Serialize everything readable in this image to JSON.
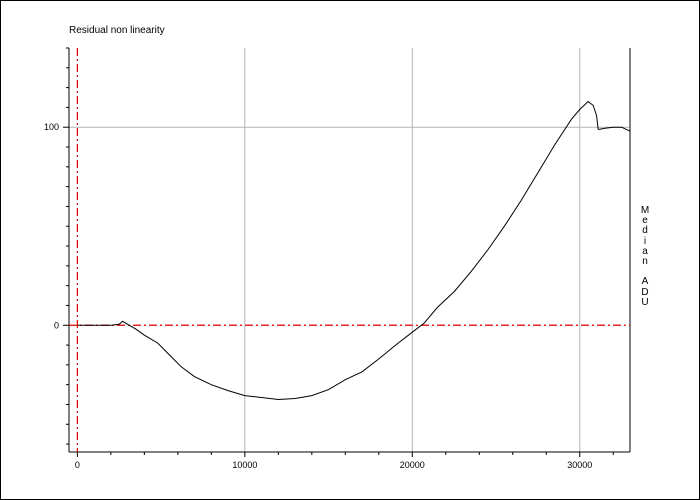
{
  "chart_data": {
    "type": "line",
    "title": "Residual non linearity",
    "xlabel": "",
    "ylabel": "Median ADU",
    "xlim": [
      -500,
      33000
    ],
    "ylim": [
      -64,
      140
    ],
    "x_ticks": [
      0,
      10000,
      20000,
      30000
    ],
    "x_tick_labels": [
      "0",
      "10000",
      "20000",
      "30000"
    ],
    "y_ticks": [
      0,
      100
    ],
    "y_tick_labels": [
      "0",
      "100"
    ],
    "grid": true,
    "reference_lines": {
      "x": 0,
      "y": 0,
      "color": "#e00000",
      "style": "dash-dot"
    },
    "series": [
      {
        "color": "#000000",
        "x": [
          0,
          1000,
          2000,
          2500,
          2700,
          3000,
          3500,
          4000,
          4800,
          5500,
          6200,
          7000,
          8000,
          9000,
          10000,
          11000,
          12000,
          13000,
          14000,
          15000,
          16000,
          17000,
          18000,
          19000,
          20000,
          20700,
          21500,
          22500,
          23500,
          24500,
          25500,
          26500,
          27500,
          28500,
          29500,
          30000,
          30500,
          30800,
          31000,
          31100,
          31200,
          31500,
          32000,
          32500,
          33000
        ],
        "y": [
          0,
          0,
          0,
          0.5,
          2,
          0.5,
          -2,
          -5,
          -9,
          -15,
          -21,
          -26,
          -30,
          -33,
          -35.5,
          -36.5,
          -37.5,
          -37,
          -35.5,
          -32.5,
          -27.5,
          -23.5,
          -17,
          -10,
          -3.5,
          1,
          9,
          17,
          27,
          38,
          50,
          63,
          77,
          91,
          104,
          109,
          113,
          111,
          106,
          99,
          99,
          99.5,
          100,
          100,
          98
        ]
      }
    ]
  }
}
